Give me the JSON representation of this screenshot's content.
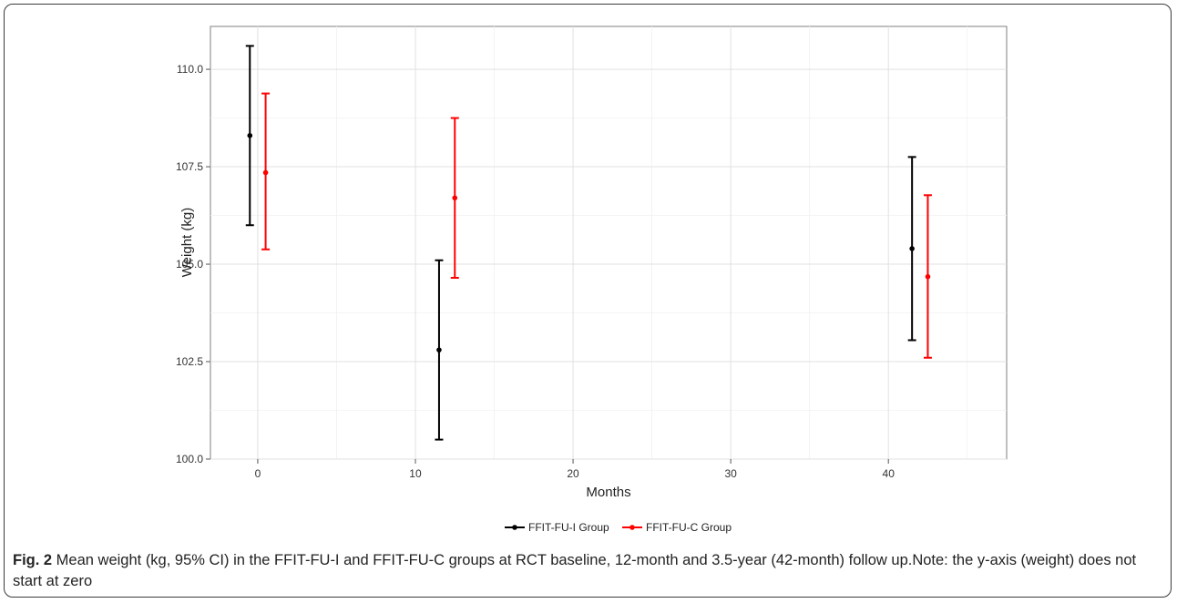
{
  "chart_data": {
    "type": "scatter",
    "xlabel": "Months",
    "ylabel": "Weight (kg)",
    "xlim": [
      -3,
      47.5
    ],
    "ylim": [
      100.0,
      111.1
    ],
    "x_ticks": [
      0,
      10,
      20,
      30,
      40
    ],
    "x_tick_labels": [
      "0",
      "10",
      "20",
      "30",
      "40"
    ],
    "y_ticks": [
      100.0,
      102.5,
      105.0,
      107.5,
      110.0
    ],
    "y_tick_labels": [
      "100.0",
      "102.5",
      "105.0",
      "107.5",
      "110.0"
    ],
    "grid": true,
    "legend_position": "bottom",
    "series": [
      {
        "name": "FFIT-FU-I Group",
        "color": "#000000",
        "points": [
          {
            "x": -0.5,
            "y": 108.3,
            "lower": 106.0,
            "upper": 110.6
          },
          {
            "x": 11.5,
            "y": 102.8,
            "lower": 100.5,
            "upper": 105.1
          },
          {
            "x": 41.5,
            "y": 105.4,
            "lower": 103.05,
            "upper": 107.75
          }
        ]
      },
      {
        "name": "FFIT-FU-C Group",
        "color": "#ff0000",
        "points": [
          {
            "x": 0.5,
            "y": 107.35,
            "lower": 105.38,
            "upper": 109.38
          },
          {
            "x": 12.5,
            "y": 106.7,
            "lower": 104.65,
            "upper": 108.75
          },
          {
            "x": 42.5,
            "y": 104.68,
            "lower": 102.6,
            "upper": 106.77
          }
        ]
      }
    ]
  },
  "caption": {
    "label": "Fig. 2",
    "text": " Mean weight (kg, 95% CI) in the FFIT-FU-I and FFIT-FU-C groups at RCT baseline, 12-month and 3.5-year (42-month) follow up.Note: the y-axis (weight) does not start at zero"
  }
}
